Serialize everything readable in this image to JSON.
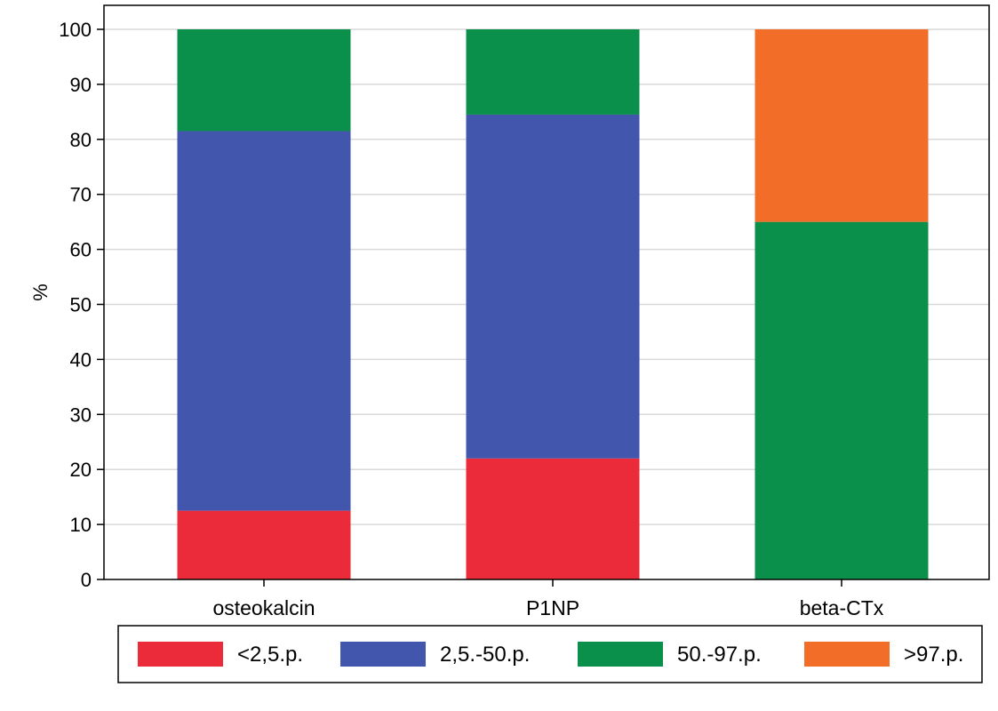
{
  "chart_data": {
    "type": "bar",
    "stacked": true,
    "title": "",
    "xlabel": "",
    "ylabel": "%",
    "ylim": [
      0,
      100
    ],
    "yticks": [
      "0",
      "10",
      "20",
      "30",
      "40",
      "50",
      "60",
      "70",
      "80",
      "90",
      "100"
    ],
    "grid": true,
    "legend_position": "bottom",
    "categories": [
      "osteokalcin",
      "P1NP",
      "beta-CTx"
    ],
    "series": [
      {
        "name": "<2,5.p.",
        "color": "#eb2a3a",
        "values": [
          12.5,
          22,
          0
        ]
      },
      {
        "name": "2,5.-50.p.",
        "color": "#4356ad",
        "values": [
          69,
          62.5,
          0
        ]
      },
      {
        "name": "50.-97.p.",
        "color": "#0b904b",
        "values": [
          18.5,
          15.5,
          65
        ]
      },
      {
        "name": ">97.p.",
        "color": "#f26e28",
        "values": [
          0,
          0,
          35
        ]
      }
    ]
  }
}
